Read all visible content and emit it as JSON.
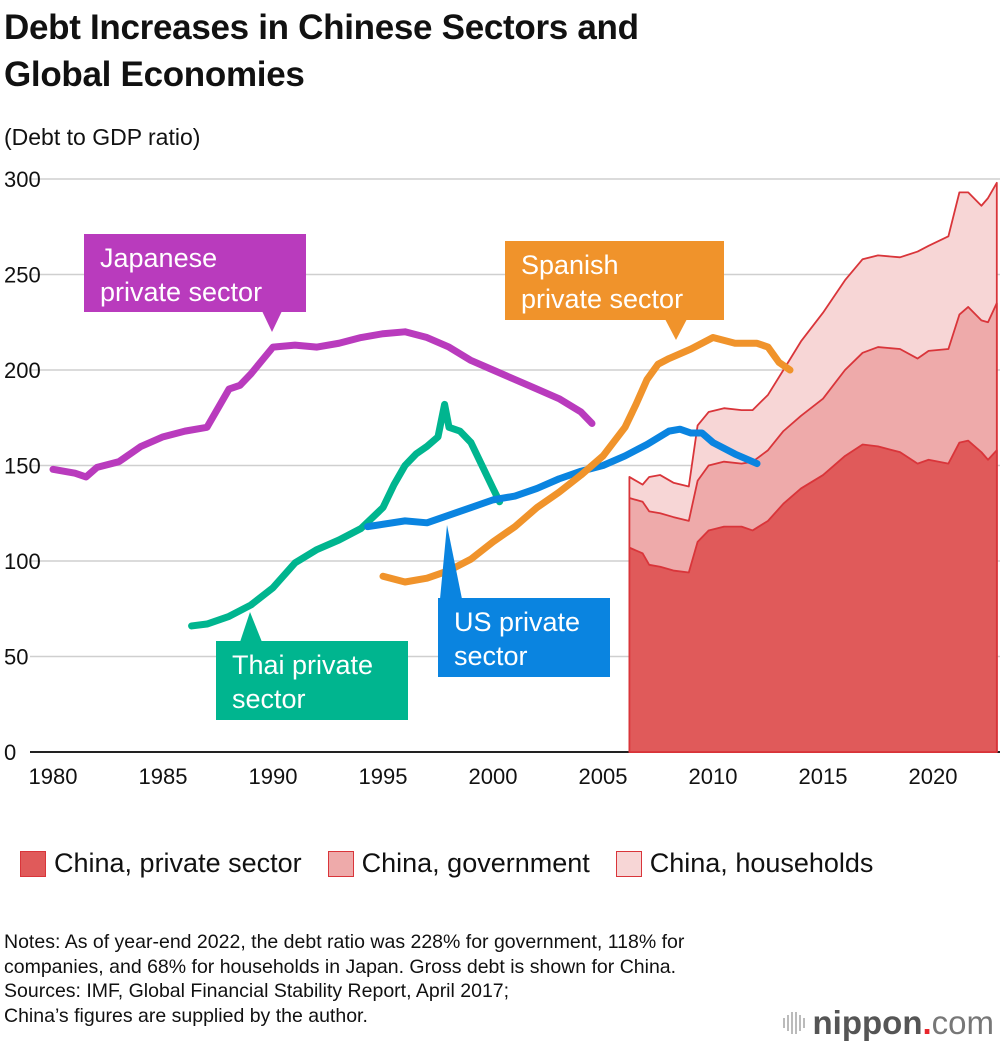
{
  "title_line1": "Debt Increases in Chinese Sectors and",
  "title_line2": "Global Economies",
  "subtitle": "(Debt to GDP ratio)",
  "chart_data": {
    "type": "line+stacked-area",
    "ylim": [
      0,
      300
    ],
    "xlim": [
      1980,
      2023
    ],
    "y_ticks": [
      0,
      50,
      100,
      150,
      200,
      250,
      300
    ],
    "x_ticks": [
      1980,
      1985,
      1990,
      1995,
      2000,
      2005,
      2010,
      2015,
      2020
    ],
    "grid": "horizontal",
    "lines": [
      {
        "name": "Japanese private sector",
        "label_line1": "Japanese",
        "label_line2": "private sector",
        "color": "#b93bbd",
        "x": [
          1980,
          1981,
          1981.5,
          1982,
          1983,
          1984,
          1985,
          1986,
          1987,
          1988,
          1988.5,
          1989,
          1990,
          1991,
          1992,
          1993,
          1994,
          1995,
          1996,
          1997,
          1998,
          1999,
          2000,
          2001,
          2002,
          2003,
          2004,
          2004.5
        ],
        "y": [
          148,
          146,
          144,
          149,
          152,
          160,
          165,
          168,
          170,
          190,
          192,
          198,
          212,
          213,
          212,
          214,
          217,
          219,
          220,
          217,
          212,
          205,
          200,
          195,
          190,
          185,
          178,
          172
        ]
      },
      {
        "name": "Thai private sector",
        "label_line1": "Thai private",
        "label_line2": "sector",
        "color": "#00b58f",
        "x": [
          1986.3,
          1987,
          1988,
          1989,
          1990,
          1991,
          1992,
          1993,
          1994,
          1995,
          1995.5,
          1996,
          1996.5,
          1997,
          1997.5,
          1997.8,
          1998,
          1998.5,
          1999,
          1999.5,
          2000,
          2000.3
        ],
        "y": [
          66,
          67,
          71,
          77,
          86,
          99,
          106,
          111,
          117,
          128,
          140,
          150,
          156,
          160,
          165,
          182,
          170,
          168,
          162,
          150,
          138,
          131
        ]
      },
      {
        "name": "US private sector",
        "label_line1": "US private",
        "label_line2": "sector",
        "color": "#0a84e0",
        "x": [
          1994.3,
          1996,
          1997,
          1998,
          1999,
          2000,
          2001,
          2002,
          2003,
          2004,
          2005,
          2006,
          2007,
          2008,
          2008.5,
          2009,
          2009.5,
          2010,
          2011,
          2012
        ],
        "y": [
          118,
          121,
          120,
          124,
          128,
          132,
          134,
          138,
          143,
          147,
          150,
          155,
          161,
          168,
          169,
          167,
          167,
          162,
          156,
          151
        ]
      },
      {
        "name": "Spanish private sector",
        "label_line1": "Spanish",
        "label_line2": "private sector",
        "color": "#f0932b",
        "x": [
          1995,
          1996,
          1997,
          1998,
          1999,
          2000,
          2001,
          2002,
          2003,
          2004,
          2005,
          2006,
          2006.5,
          2007,
          2007.5,
          2008,
          2009,
          2009.5,
          2010,
          2011,
          2012,
          2012.5,
          2013,
          2013.5
        ],
        "y": [
          92,
          89,
          91,
          95,
          101,
          110,
          118,
          128,
          136,
          145,
          155,
          170,
          182,
          195,
          203,
          206,
          211,
          214,
          217,
          214,
          214,
          212,
          204,
          200
        ]
      }
    ],
    "stacked": {
      "x": [
        2006.2,
        2006.8,
        2007.1,
        2007.6,
        2008.2,
        2008.9,
        2009.3,
        2009.8,
        2010.5,
        2011.3,
        2011.8,
        2012.5,
        2013.2,
        2014,
        2015,
        2016,
        2016.8,
        2017.5,
        2018.5,
        2019.3,
        2019.8,
        2020.7,
        2021.2,
        2021.6,
        2022.2,
        2022.5,
        2022.9
      ],
      "series": [
        {
          "name": "China, private sector",
          "color": "#e05a5a",
          "values": [
            107,
            104,
            98,
            97,
            95,
            94,
            110,
            116,
            118,
            118,
            116,
            121,
            130,
            138,
            145,
            155,
            161,
            160,
            157,
            151,
            153,
            151,
            162,
            163,
            157,
            153,
            158
          ]
        },
        {
          "name": "China, government",
          "color": "#eeaaaa",
          "values": [
            26,
            27,
            28,
            28,
            28,
            27,
            32,
            34,
            34,
            33,
            36,
            37,
            38,
            38,
            40,
            45,
            48,
            52,
            54,
            55,
            57,
            60,
            67,
            70,
            69,
            72,
            77
          ]
        },
        {
          "name": "China, households",
          "color": "#f7d6d6",
          "values": [
            11,
            9,
            18,
            20,
            18,
            18,
            29,
            28,
            28,
            28,
            27,
            29,
            32,
            39,
            45,
            47,
            49,
            48,
            48,
            56,
            55,
            59,
            64,
            60,
            60,
            65,
            63
          ]
        }
      ],
      "stroke": "#d9353a"
    }
  },
  "notes": [
    "Notes: As of year-end 2022, the debt ratio was 228% for government, 118% for",
    "companies, and 68% for households in Japan. Gross debt is shown for China.",
    "Sources: IMF, Global Financial Stability Report, April 2017;",
    "China’s figures are supplied by the author."
  ],
  "logo": {
    "name": "nippon",
    "dot": ".",
    "suffix": "com"
  }
}
